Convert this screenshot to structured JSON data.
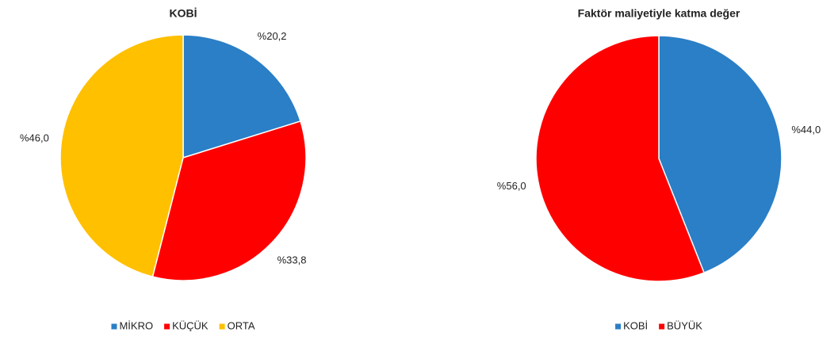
{
  "chart_data": [
    {
      "type": "pie",
      "title": "KOBİ",
      "categories": [
        "MİKRO",
        "KÜÇÜK",
        "ORTA"
      ],
      "values": [
        20.2,
        33.8,
        46.0
      ],
      "value_labels": [
        "%20,2",
        "%33,8",
        "%46,0"
      ],
      "colors": [
        "#2a7fc6",
        "#ff0000",
        "#ffc000"
      ],
      "legend": "bottom"
    },
    {
      "type": "pie",
      "title": "Faktör maliyetiyle katma değer",
      "categories": [
        "KOBİ",
        "BÜYÜK"
      ],
      "values": [
        44.0,
        56.0
      ],
      "value_labels": [
        "%44,0",
        "%56,0"
      ],
      "colors": [
        "#2a7fc6",
        "#ff0000"
      ],
      "legend": "bottom"
    }
  ]
}
